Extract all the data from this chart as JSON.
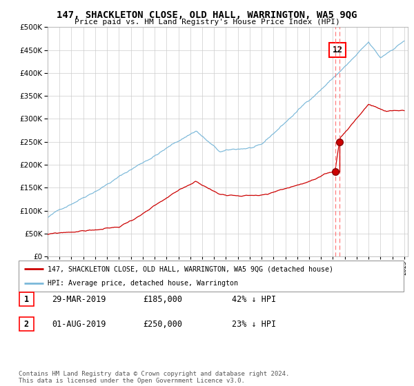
{
  "title": "147, SHACKLETON CLOSE, OLD HALL, WARRINGTON, WA5 9QG",
  "subtitle": "Price paid vs. HM Land Registry's House Price Index (HPI)",
  "ylim": [
    0,
    500000
  ],
  "yticks": [
    0,
    50000,
    100000,
    150000,
    200000,
    250000,
    300000,
    350000,
    400000,
    450000,
    500000
  ],
  "hpi_color": "#7ab8d9",
  "price_color": "#cc0000",
  "sale1_date_num": 2019.22,
  "sale1_price": 185000,
  "sale2_date_num": 2019.58,
  "sale2_price": 250000,
  "legend_label_price": "147, SHACKLETON CLOSE, OLD HALL, WARRINGTON, WA5 9QG (detached house)",
  "legend_label_hpi": "HPI: Average price, detached house, Warrington",
  "footnote": "Contains HM Land Registry data © Crown copyright and database right 2024.\nThis data is licensed under the Open Government Licence v3.0.",
  "box_label": "12",
  "background_color": "#ffffff",
  "grid_color": "#cccccc",
  "table_rows": [
    {
      "num": "1",
      "date": "29-MAR-2019",
      "price": "£185,000",
      "pct": "42% ↓ HPI"
    },
    {
      "num": "2",
      "date": "01-AUG-2019",
      "price": "£250,000",
      "pct": "23% ↓ HPI"
    }
  ]
}
